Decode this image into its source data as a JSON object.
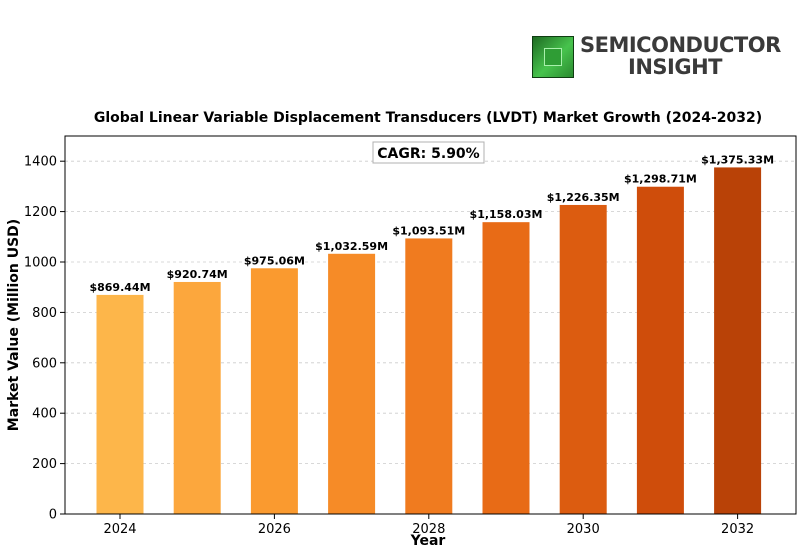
{
  "logo": {
    "line1": "SEMICONDUCTOR",
    "line2": "INSIGHT"
  },
  "chart_data": {
    "type": "bar",
    "title": "Global Linear Variable Displacement Transducers (LVDT) Market Growth (2024-2032)",
    "xlabel": "Year",
    "ylabel": "Market Value (Million USD)",
    "annotation": "CAGR: 5.90%",
    "categories": [
      "2024",
      "2025",
      "2026",
      "2027",
      "2028",
      "2029",
      "2030",
      "2031",
      "2032"
    ],
    "values": [
      869.44,
      920.74,
      975.06,
      1032.59,
      1093.51,
      1158.03,
      1226.35,
      1298.71,
      1375.33
    ],
    "data_labels": [
      "$869.44M",
      "$920.74M",
      "$975.06M",
      "$1,032.59M",
      "$1,093.51M",
      "$1,158.03M",
      "$1,226.35M",
      "$1,298.71M",
      "$1,375.33M"
    ],
    "x_ticks": [
      "2024",
      "2026",
      "2028",
      "2030",
      "2032"
    ],
    "y_ticks": [
      "0",
      "200",
      "400",
      "600",
      "800",
      "1000",
      "1200",
      "1400"
    ],
    "ylim": [
      0,
      1500
    ],
    "grid": true,
    "colors": [
      "#fdb64a",
      "#fca73d",
      "#fa9a2f",
      "#f68b27",
      "#f07b1f",
      "#e86b16",
      "#dc5c10",
      "#cf4d0b",
      "#b94207"
    ]
  }
}
